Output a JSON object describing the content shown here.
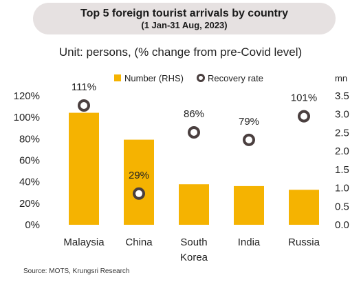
{
  "header": {
    "title": "Top 5 foreign tourist arrivals by country",
    "subtitle": "(1 Jan-31 Aug, 2023)"
  },
  "unit_label": "Unit: persons, (% change from pre-Covid level)",
  "source": "Source: MOTS, Krungsri Research",
  "colors": {
    "bar": "#f5b301",
    "marker_stroke": "#4a3f3f",
    "marker_fill": "#ffffff"
  },
  "chart_data": {
    "type": "bar",
    "categories": [
      [
        "Malaysia"
      ],
      [
        "China"
      ],
      [
        "South",
        "Korea"
      ],
      [
        "India"
      ],
      [
        "Russia"
      ]
    ],
    "legend": [
      "Number (RHS)",
      "Recovery rate"
    ],
    "legend_position": "top",
    "series": [
      {
        "name": "Number (RHS)",
        "type": "bar",
        "axis": "right",
        "values": [
          3.04,
          2.31,
          1.1,
          1.05,
          0.95
        ]
      },
      {
        "name": "Recovery rate",
        "type": "scatter",
        "axis": "left",
        "values": [
          111,
          29,
          86,
          79,
          101
        ],
        "labels": [
          "111%",
          "29%",
          "86%",
          "79%",
          "101%"
        ]
      }
    ],
    "y_left": {
      "ylim": [
        0,
        120
      ],
      "ticks": [
        "0%",
        "20%",
        "40%",
        "60%",
        "80%",
        "100%",
        "120%"
      ]
    },
    "y_right": {
      "unit": "mn",
      "ylim": [
        0,
        3.5
      ],
      "ticks": [
        "0.0",
        "0.5",
        "1.0",
        "1.5",
        "2.0",
        "2.5",
        "3.0",
        "3.5"
      ]
    },
    "grid": false
  }
}
